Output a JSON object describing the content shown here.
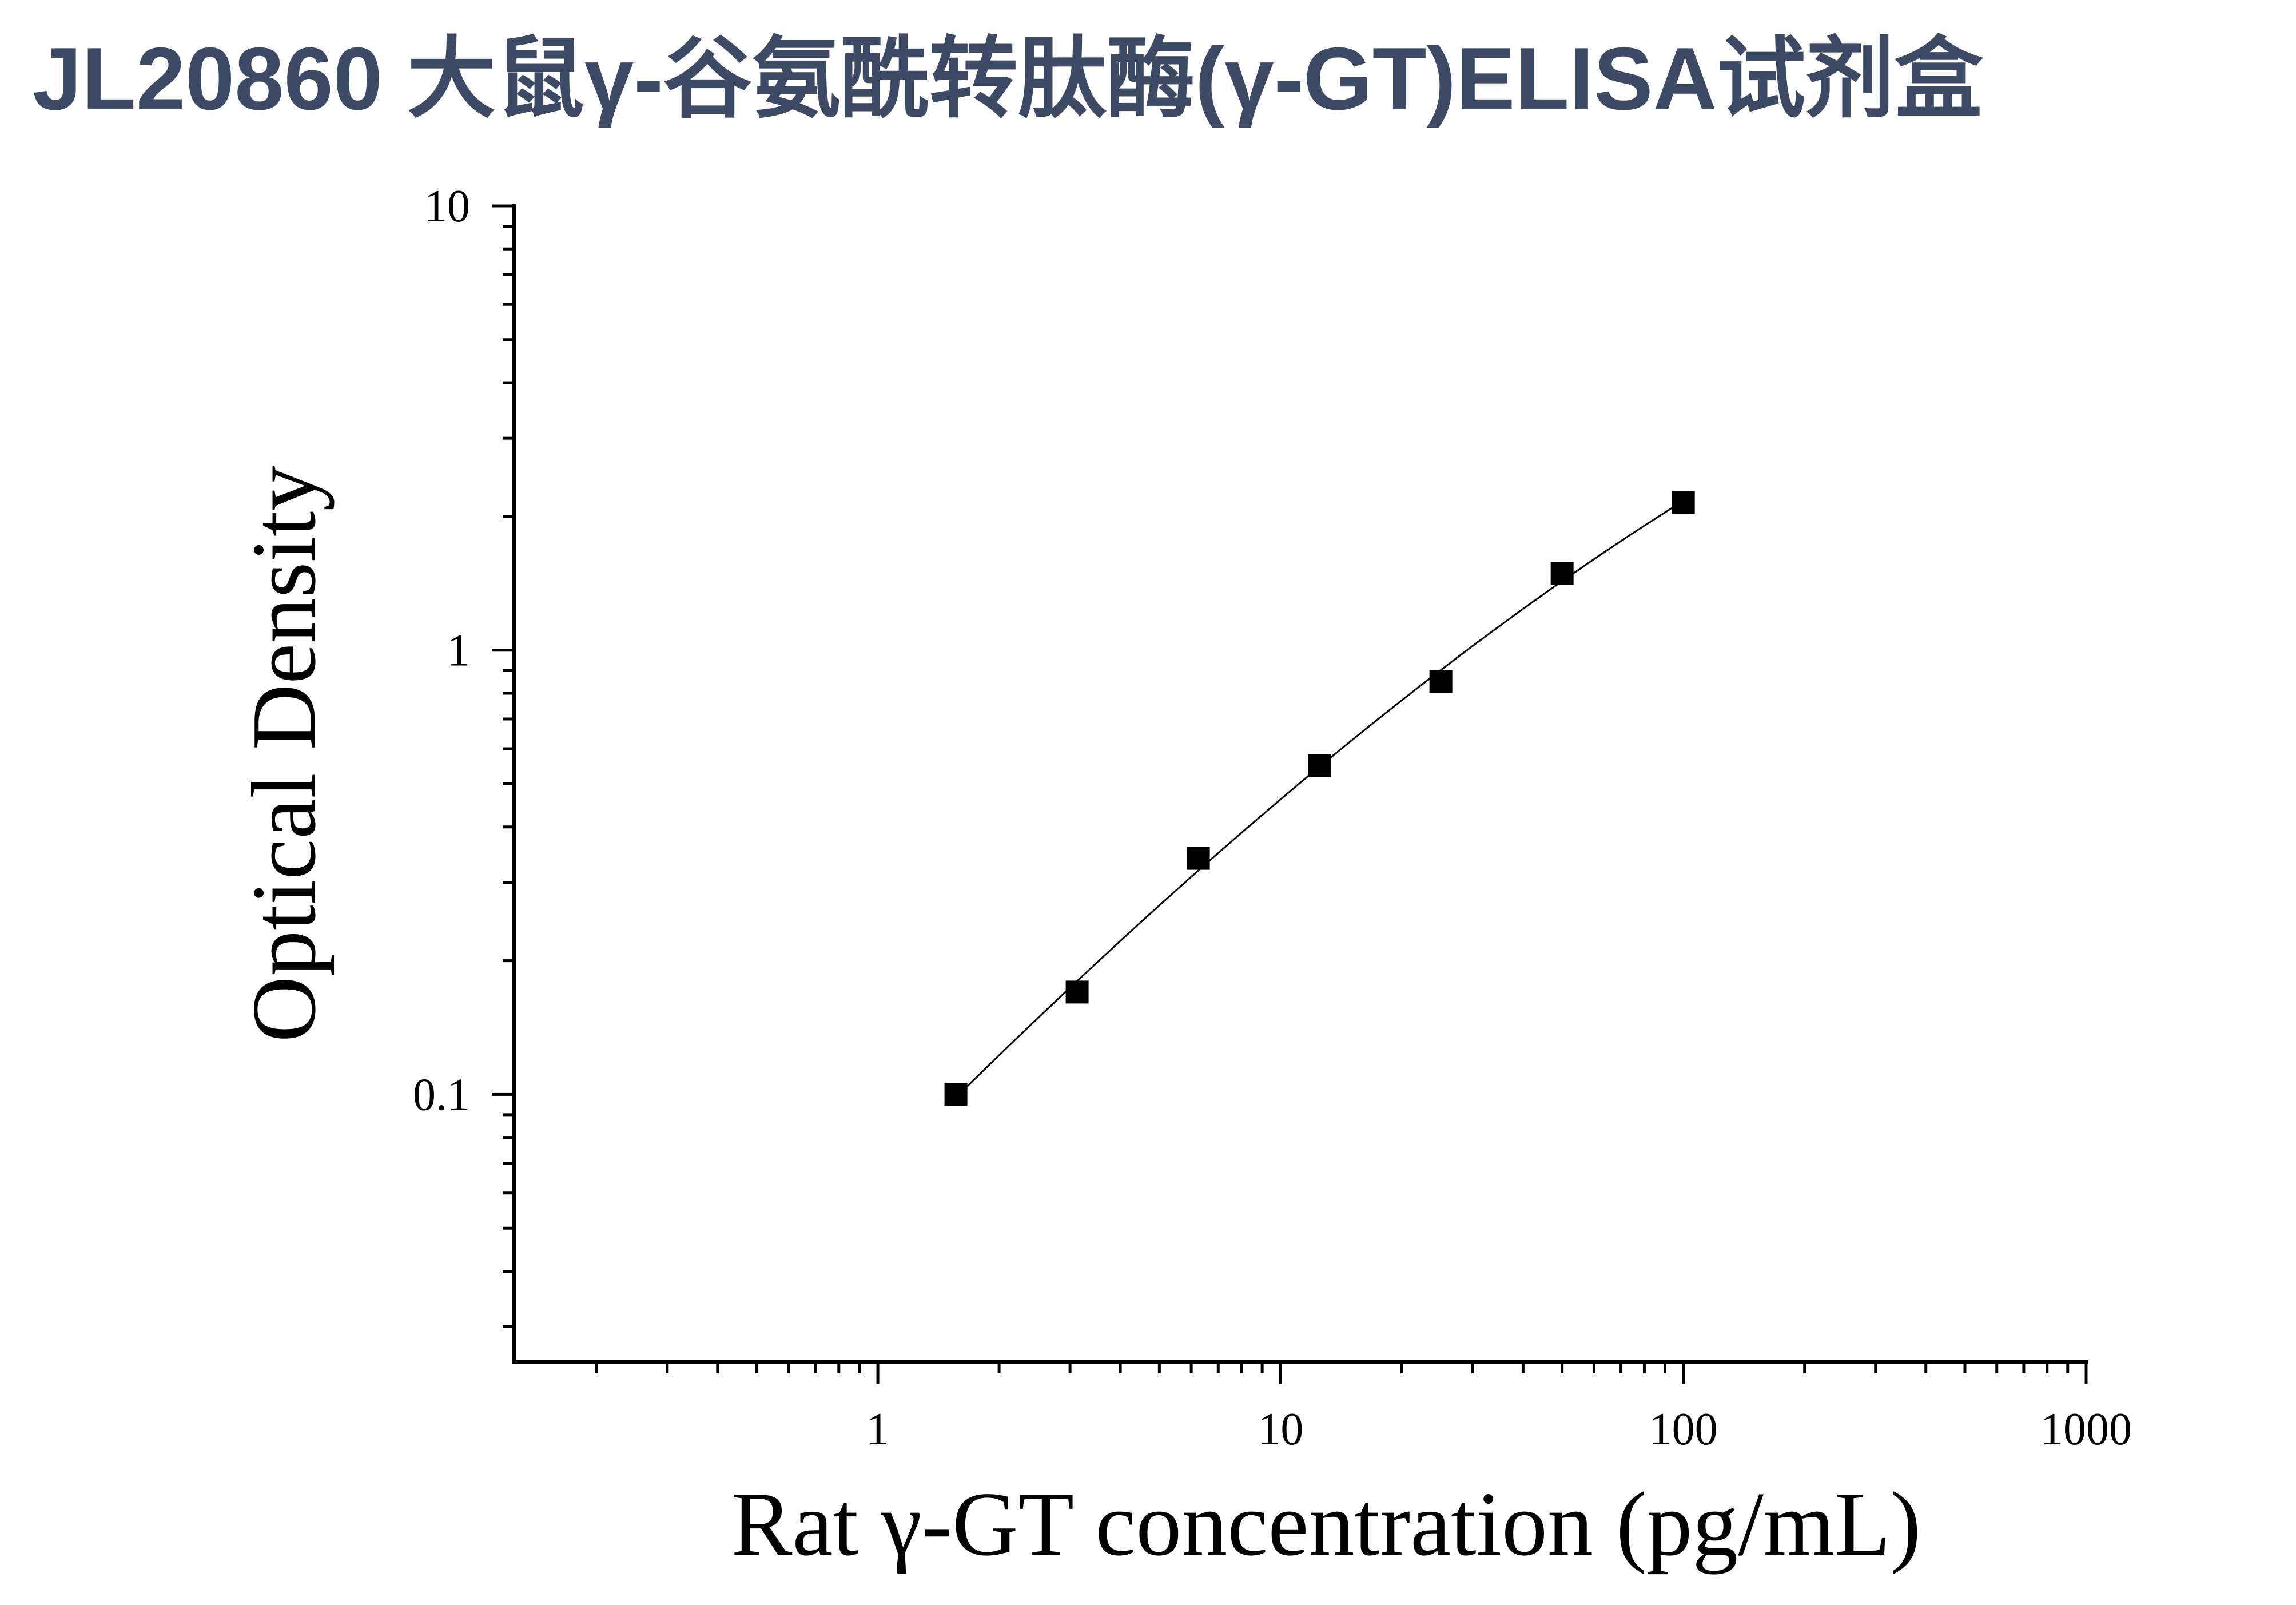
{
  "colors": {
    "title": "#3d4a66",
    "axes": "#000000",
    "markers": "#000000",
    "background": "#ffffff"
  },
  "chart_data": {
    "type": "scatter",
    "title": "JL20860 大鼠γ-谷氨酰转肽酶(γ-GT)ELISA试剂盒",
    "xlabel": "Rat γ-GT concentration (pg/mL)",
    "ylabel": "Optical Density",
    "x_scale": "log",
    "y_scale": "log",
    "xlim": [
      0.125,
      1000
    ],
    "ylim": [
      0.025,
      10
    ],
    "xticks": [
      {
        "value": 1,
        "label": "1"
      },
      {
        "value": 10,
        "label": "10"
      },
      {
        "value": 100,
        "label": "100"
      },
      {
        "value": 1000,
        "label": "1000"
      }
    ],
    "yticks": [
      {
        "value": 0.1,
        "label": "0.1"
      },
      {
        "value": 1,
        "label": "1"
      },
      {
        "value": 10,
        "label": "10"
      }
    ],
    "grid": false,
    "legend": "none",
    "series": [
      {
        "marker": "square",
        "fit_curve": true,
        "x": [
          1.5625,
          3.125,
          6.25,
          12.5,
          25,
          50,
          100
        ],
        "y": [
          0.1,
          0.17,
          0.34,
          0.55,
          0.85,
          1.49,
          2.15
        ]
      }
    ]
  }
}
